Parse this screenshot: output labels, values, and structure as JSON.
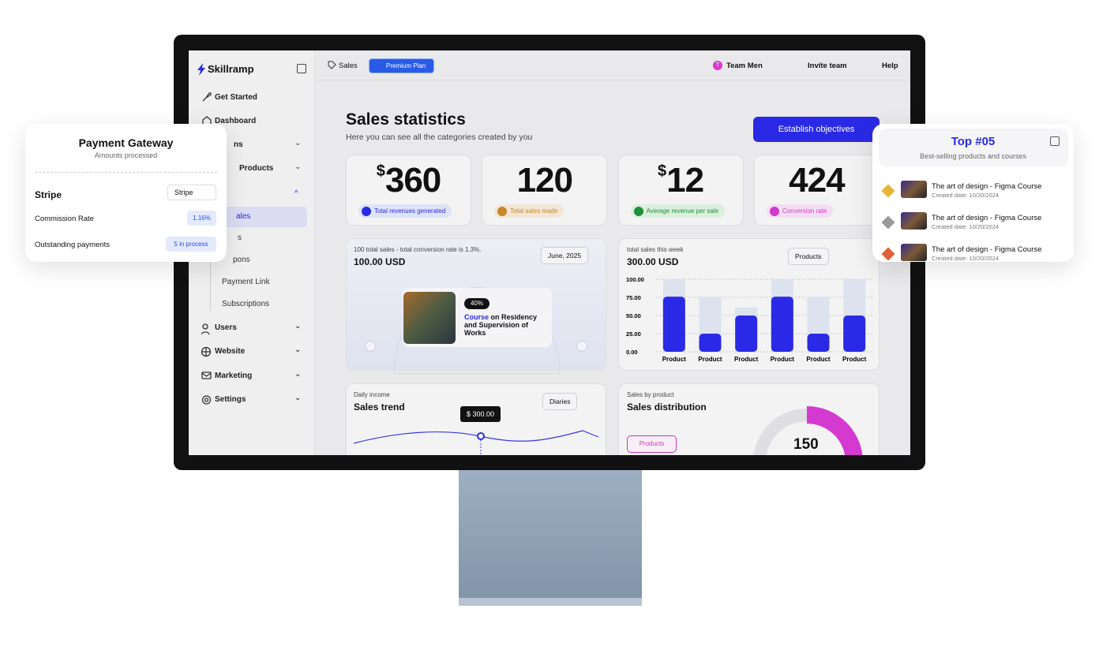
{
  "sidebar": {
    "brand": "Skillramp",
    "nav": [
      "Get Started",
      "Dashboard",
      "ns",
      "Products"
    ],
    "sub": [
      "ales",
      "s",
      "pons",
      "Payment Link",
      "Subscriptions"
    ],
    "nav2": [
      "Users",
      "Website",
      "Marketing",
      "Settings"
    ]
  },
  "topbar": {
    "tag": "Sales",
    "plan": "Premium Plan",
    "team_avatar": "T",
    "team": "Team Men",
    "invite": "Invite team",
    "help": "Help"
  },
  "header": {
    "title": "Sales statistics",
    "subtitle": "Here you can see all the categories created by you",
    "button": "Establish objectives"
  },
  "stats": [
    {
      "prefix": "$",
      "value": "360",
      "label": "Total revenues generated"
    },
    {
      "value": "120",
      "label": "Total sales made"
    },
    {
      "prefix": "$",
      "value": "12",
      "label": "Average revenue per sale"
    },
    {
      "value": "424",
      "label": "Conversion rate"
    }
  ],
  "sales_panel": {
    "note": "100 total sales - total conversion rate is 1.3%.",
    "amount": "100.00 USD",
    "period": "June, 2025",
    "badge": "40%",
    "course_highlight": "Course",
    "course_text": "on Residency and Supervision of Works"
  },
  "weekly_chart": {
    "type": "bar",
    "subtitle": "total sales this week",
    "amount": "300.00 USD",
    "filter": "Products",
    "categories": [
      "Product",
      "Product",
      "Product",
      "Product",
      "Product",
      "Product"
    ],
    "series": [
      {
        "color": "#dce2ee",
        "values": [
          100,
          76,
          61,
          100,
          76,
          100
        ]
      },
      {
        "color": "#2a2ae6",
        "values": [
          76,
          25,
          50,
          76,
          25,
          50
        ]
      }
    ],
    "ylim": [
      0,
      100
    ],
    "yticks": [
      {
        "value": 0,
        "label": "0.00"
      },
      {
        "value": 25,
        "label": "25.00"
      },
      {
        "value": 50,
        "label": "50.00"
      },
      {
        "value": 75,
        "label": "75.00"
      },
      {
        "value": 100,
        "label": "100.00"
      }
    ],
    "grid": true
  },
  "trend_panel": {
    "caption": "Daily income",
    "title": "Sales trend",
    "filter": "Diaries",
    "tooltip": "$ 300.00"
  },
  "distribution_panel": {
    "caption": "Sales by product",
    "title": "Sales distribution",
    "legend": "Products",
    "total": "150"
  },
  "payment_card": {
    "title": "Payment Gateway",
    "subtitle": "Amounts processed",
    "provider": "Stripe",
    "selector": "Stripe",
    "rows": [
      {
        "label": "Commission Rate",
        "value": "1.16%"
      },
      {
        "label": "Outstanding payments",
        "value": "5 in process"
      }
    ]
  },
  "top_card": {
    "title": "Top #05",
    "subtitle": "Best-selling products and courses",
    "items": [
      {
        "name": "The art of design - Figma Course",
        "date": "Created date: 10/20/2024"
      },
      {
        "name": "The art of design - Figma Course",
        "date": "Created date: 10/20/2024"
      },
      {
        "name": "The art of design - Figma Course",
        "date": "Created date: 10/20/2024"
      }
    ]
  }
}
